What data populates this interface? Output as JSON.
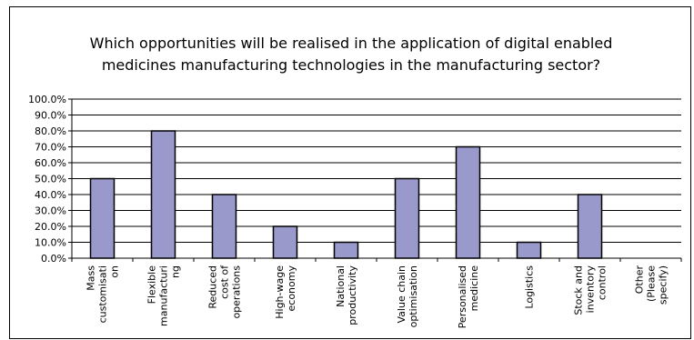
{
  "chart_data": {
    "type": "bar",
    "title": "Which opportunities will be realised in the application of digital enabled medicines manufacturing technologies in the manufacturing sector?",
    "title_lines": [
      "Which opportunities will be realised in the application of digital enabled",
      "medicines manufacturing technologies in the manufacturing sector?"
    ],
    "categories": [
      "Mass customisation",
      "Flexible manufacturing",
      "Reduced cost of operations",
      "High-wage economy",
      "National productivity",
      "Value chain optimisation",
      "Personalised medicine",
      "Logistics",
      "Stock and inventory control",
      "Other (Please specify)"
    ],
    "category_label_lines": [
      [
        "Mass",
        "customisati",
        "on"
      ],
      [
        "Flexible",
        "manufacturi",
        "ng"
      ],
      [
        "Reduced",
        "cost of",
        "operations"
      ],
      [
        "High-wage",
        "economy"
      ],
      [
        "National",
        "productivity"
      ],
      [
        "Value chain",
        "optimisation"
      ],
      [
        "Personalised",
        "medicine"
      ],
      [
        "Logistics"
      ],
      [
        "Stock and",
        "inventory",
        "control"
      ],
      [
        "Other",
        "(Please",
        "specify)"
      ]
    ],
    "values": [
      50,
      80,
      40,
      20,
      10,
      50,
      70,
      10,
      40,
      0
    ],
    "ylim": [
      0,
      100
    ],
    "yticks": [
      "0.0%",
      "10.0%",
      "20.0%",
      "30.0%",
      "40.0%",
      "50.0%",
      "60.0%",
      "70.0%",
      "80.0%",
      "90.0%",
      "100.0%"
    ],
    "xlabel": "",
    "ylabel": "",
    "grid": true,
    "legend": "none",
    "colors": {
      "bar_fill": "#9999cc",
      "bar_stroke": "#000000",
      "grid": "#000000"
    }
  }
}
